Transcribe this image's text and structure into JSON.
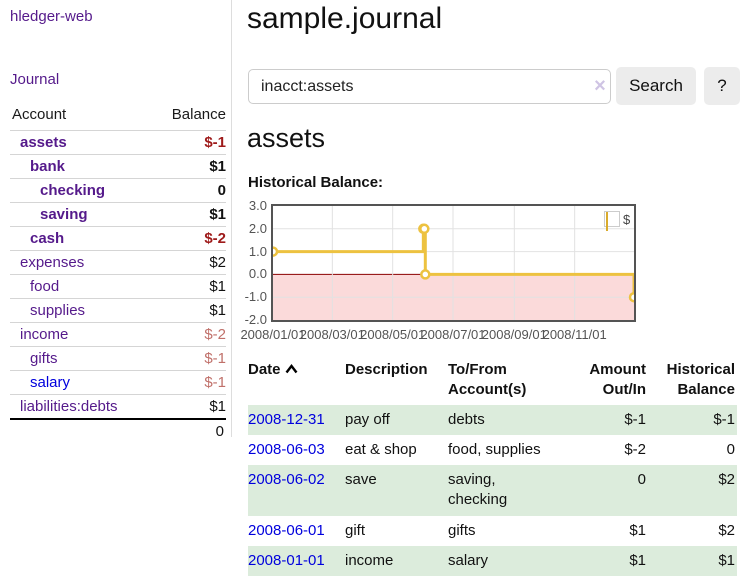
{
  "app": {
    "title": "hledger-web"
  },
  "sidebar": {
    "nav_journal": "Journal",
    "table_headers": {
      "account": "Account",
      "balance": "Balance"
    },
    "accounts": [
      {
        "name": "assets",
        "balance": "$-1",
        "level": 1,
        "bold": true,
        "balance_color": "negative"
      },
      {
        "name": "bank",
        "balance": "$1",
        "level": 2,
        "bold": true,
        "balance_color": "normal"
      },
      {
        "name": "checking",
        "balance": "0",
        "level": 3,
        "bold": true,
        "balance_color": "normal"
      },
      {
        "name": "saving",
        "balance": "$1",
        "level": 3,
        "bold": true,
        "balance_color": "normal"
      },
      {
        "name": "cash",
        "balance": "$-2",
        "level": 2,
        "bold": true,
        "balance_color": "negative"
      },
      {
        "name": "expenses",
        "balance": "$2",
        "level": 1,
        "bold": false,
        "balance_color": "normal"
      },
      {
        "name": "food",
        "balance": "$1",
        "level": 2,
        "bold": false,
        "balance_color": "normal"
      },
      {
        "name": "supplies",
        "balance": "$1",
        "level": 2,
        "bold": false,
        "balance_color": "normal"
      },
      {
        "name": "income",
        "balance": "$-2",
        "level": 1,
        "bold": false,
        "balance_color": "negative-light"
      },
      {
        "name": "gifts",
        "balance": "$-1",
        "level": 2,
        "bold": false,
        "balance_color": "negative-light"
      },
      {
        "name": "salary",
        "balance": "$-1",
        "level": 2,
        "bold": false,
        "balance_color": "negative-light",
        "link_color": "blue"
      },
      {
        "name": "liabilities:debts",
        "balance": "$1",
        "level": 1,
        "bold": false,
        "balance_color": "normal"
      }
    ],
    "total": "0"
  },
  "main": {
    "title": "sample.journal",
    "search": {
      "value": "inacct:assets",
      "clear_icon": "×",
      "button_label": "Search",
      "help_label": "?"
    },
    "account_heading": "assets",
    "chart_label": "Historical Balance:"
  },
  "chart_data": {
    "type": "line",
    "step": true,
    "title": "Historical Balance:",
    "series": [
      {
        "name": "$",
        "color": "#edc240",
        "points": [
          [
            "2008-01-01",
            1
          ],
          [
            "2008-06-01",
            2
          ],
          [
            "2008-06-02",
            2
          ],
          [
            "2008-06-03",
            0
          ],
          [
            "2008-12-31",
            -1
          ]
        ]
      }
    ],
    "x_range": [
      "2008-01-01",
      "2008-12-31"
    ],
    "x_ticks": [
      "2008/01/01",
      "2008/03/01",
      "2008/05/01",
      "2008/07/01",
      "2008/09/01",
      "2008/11/01"
    ],
    "y_ticks": [
      "3.0",
      "2.0",
      "1.0",
      "0.0",
      "-1.0",
      "-2.0"
    ],
    "ylim": [
      -2,
      3
    ],
    "legend_position": "top-right",
    "grid": true,
    "zero_line_color": "#8b0000",
    "negative_fill": "#fbdada",
    "border_color": "#545454",
    "gridline_color": "#e2e2e2"
  },
  "transactions": {
    "headers": [
      {
        "lines": [
          "Date"
        ],
        "align": "left",
        "sortable": true
      },
      {
        "lines": [
          "Description"
        ],
        "align": "left"
      },
      {
        "lines": [
          "To/From",
          "Account(s)"
        ],
        "align": "left"
      },
      {
        "lines": [
          "Amount",
          "Out/In"
        ],
        "align": "right"
      },
      {
        "lines": [
          "Historical",
          "Balance"
        ],
        "align": "right"
      }
    ],
    "sort_icon": "chevron-up",
    "rows": [
      {
        "date": "2008-12-31",
        "description": "pay off",
        "accounts": [
          "debts"
        ],
        "amount": "$-1",
        "amount_color": "negative",
        "balance": "$-1",
        "balance_color": "negative"
      },
      {
        "date": "2008-06-03",
        "description": "eat & shop",
        "accounts": [
          "food, supplies"
        ],
        "amount": "$-2",
        "amount_color": "negative",
        "balance": "0",
        "balance_color": "normal"
      },
      {
        "date": "2008-06-02",
        "description": "save",
        "accounts": [
          "saving,",
          "checking"
        ],
        "amount": "0",
        "amount_color": "normal",
        "balance": "$2",
        "balance_color": "normal"
      },
      {
        "date": "2008-06-01",
        "description": "gift",
        "accounts": [
          "gifts"
        ],
        "amount": "$1",
        "amount_color": "normal",
        "balance": "$2",
        "balance_color": "normal"
      },
      {
        "date": "2008-01-01",
        "description": "income",
        "accounts": [
          "salary"
        ],
        "amount": "$1",
        "amount_color": "normal",
        "balance": "$1",
        "balance_color": "normal"
      }
    ]
  },
  "colors": {
    "link_purple": "#551a8b",
    "link_blue": "#0000dd",
    "negative_dark_red": "#9e1a1a",
    "negative_light_red": "#c0706a",
    "row_green": "#dcecdc",
    "series_yellow": "#edc240"
  }
}
